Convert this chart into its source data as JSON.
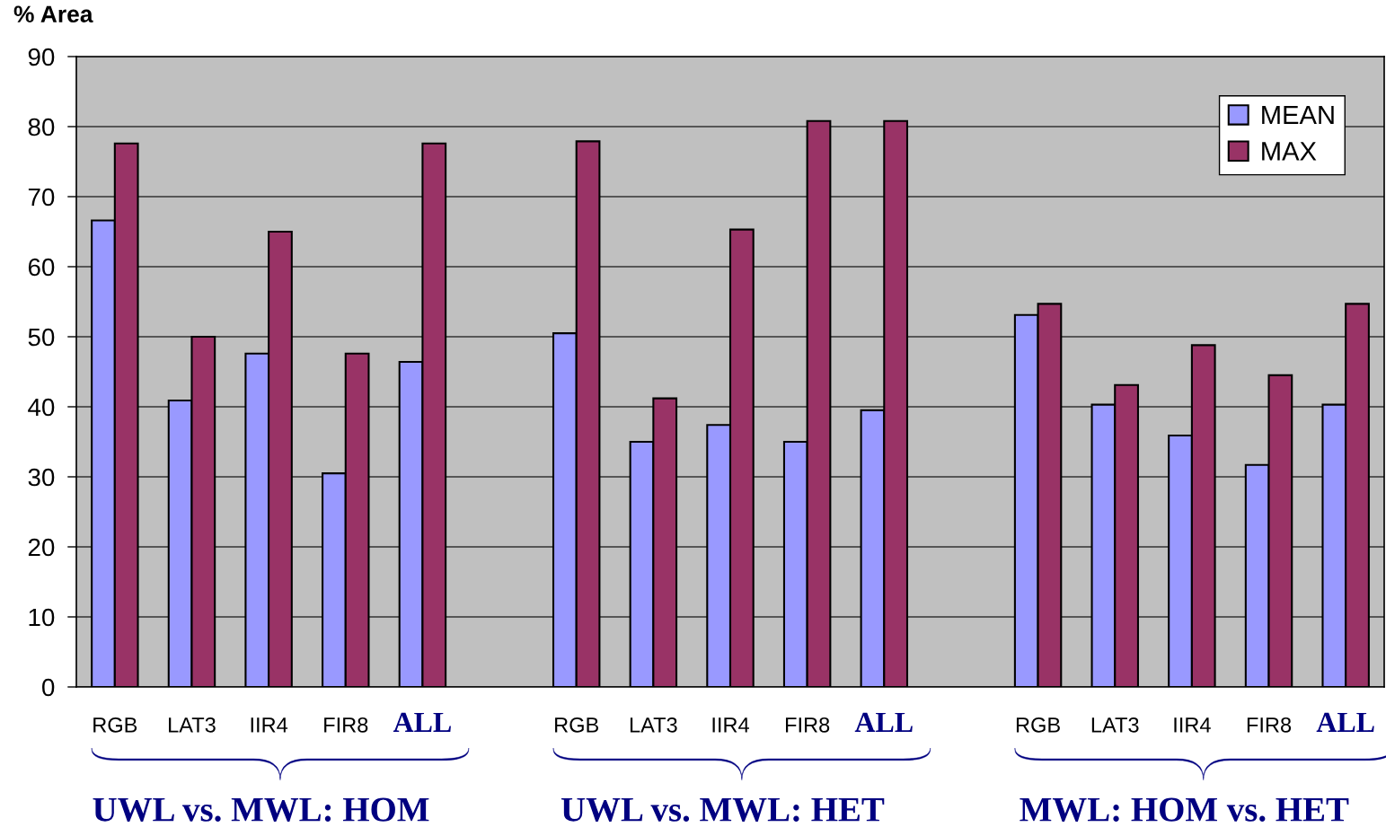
{
  "chart_data": {
    "type": "bar",
    "ylabel": "% Area",
    "categories": [
      "RGB",
      "LAT3",
      "IIR4",
      "FIR8",
      "ALL",
      null,
      "RGB",
      "LAT3",
      "IIR4",
      "FIR8",
      "ALL",
      null,
      "RGB",
      "LAT3",
      "IIR4",
      "FIR8",
      "ALL"
    ],
    "series": [
      {
        "name": "MEAN",
        "color": "#9999ff",
        "values": [
          66.6,
          40.9,
          47.6,
          30.5,
          46.4,
          null,
          50.5,
          35.0,
          37.4,
          35.0,
          39.5,
          null,
          53.1,
          40.3,
          35.9,
          31.7,
          40.3
        ]
      },
      {
        "name": "MAX",
        "color": "#993366",
        "values": [
          77.6,
          50.0,
          65.0,
          47.6,
          77.6,
          null,
          77.9,
          41.2,
          65.3,
          80.8,
          80.8,
          null,
          54.7,
          43.1,
          48.8,
          44.5,
          54.7
        ]
      }
    ],
    "ylim": [
      0,
      90
    ],
    "yticks": [
      0,
      10,
      20,
      30,
      40,
      50,
      60,
      70,
      80,
      90
    ],
    "grid": "y",
    "legend": "top right",
    "annotations": [
      "UWL vs. MWL: HOM",
      "UWL vs. MWL: HET",
      "MWL: HOM vs. HET"
    ]
  }
}
